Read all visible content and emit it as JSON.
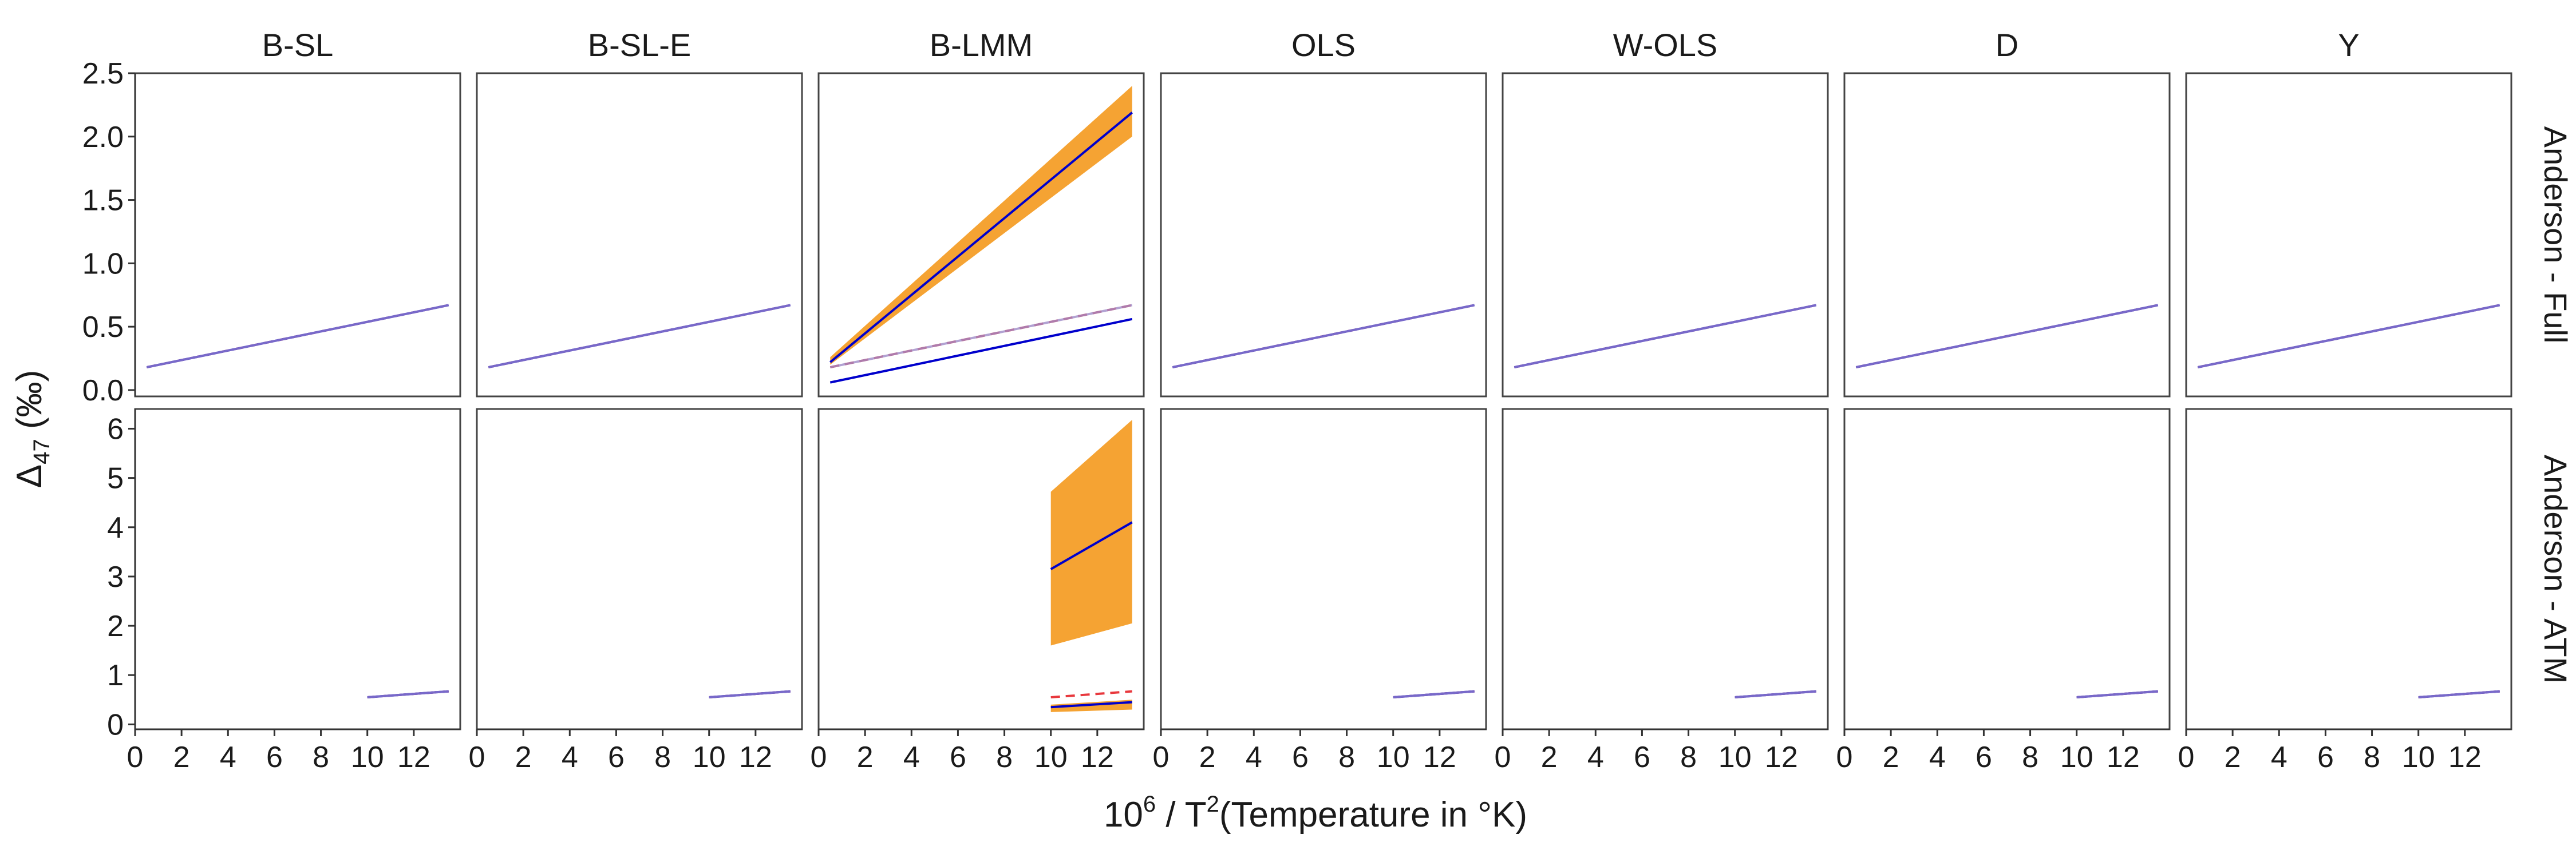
{
  "chart_data": {
    "type": "line",
    "columns": [
      "B-SL",
      "B-SL-E",
      "B-LMM",
      "OLS",
      "W-OLS",
      "D",
      "Y"
    ],
    "rows": [
      "Anderson - Full",
      "Anderson - ATM"
    ],
    "xlabel": {
      "base": "10",
      "sup": "6",
      "mid": " / T",
      "sup2": "2",
      "tail": "(Temperature in °K)"
    },
    "ylabel": {
      "main": "Δ",
      "sub": "47",
      "tail": " (‰)"
    },
    "xlim": [
      0,
      14
    ],
    "x_ticks": [
      0,
      2,
      4,
      6,
      8,
      10,
      12
    ],
    "rows_ylim": [
      [
        -0.05,
        2.5
      ],
      [
        -0.1,
        6.4
      ]
    ],
    "rows_y_ticks": [
      {
        "values": [
          0.0,
          0.5,
          1.0,
          1.5,
          2.0,
          2.5
        ],
        "labels": [
          "0.0",
          "0.5",
          "1.0",
          "1.5",
          "2.0",
          "2.5"
        ]
      },
      {
        "values": [
          0,
          1,
          2,
          3,
          4,
          5,
          6
        ],
        "labels": [
          "0",
          "1",
          "2",
          "3",
          "4",
          "5",
          "6"
        ]
      }
    ],
    "colors": {
      "fit": "#0000cc",
      "band": "#f5a333",
      "reference": "#e8383d",
      "overlay": "#a08cc8"
    },
    "panels": [
      [
        {
          "x": [
            0.5,
            13.5
          ],
          "fit": [
            0.18,
            0.67
          ],
          "reference": [
            0.18,
            0.67
          ]
        },
        {
          "x": [
            0.5,
            13.5
          ],
          "fit": [
            0.18,
            0.67
          ],
          "reference": [
            0.18,
            0.67
          ]
        },
        {
          "x": [
            0.5,
            13.5
          ],
          "fit": [
            0.22,
            2.19
          ],
          "band_lower": [
            0.2,
            2.0
          ],
          "band_upper": [
            0.26,
            2.4
          ],
          "fit2": [
            0.06,
            0.56
          ],
          "reference": [
            0.18,
            0.67
          ],
          "overlay": [
            0.18,
            0.67
          ]
        },
        {
          "x": [
            0.5,
            13.5
          ],
          "fit": [
            0.18,
            0.67
          ],
          "reference": [
            0.18,
            0.67
          ]
        },
        {
          "x": [
            0.5,
            13.5
          ],
          "fit": [
            0.18,
            0.67
          ],
          "reference": [
            0.18,
            0.67
          ]
        },
        {
          "x": [
            0.5,
            13.5
          ],
          "fit": [
            0.18,
            0.67
          ],
          "reference": [
            0.18,
            0.67
          ]
        },
        {
          "x": [
            0.5,
            13.5
          ],
          "fit": [
            0.18,
            0.67
          ],
          "reference": [
            0.18,
            0.67
          ]
        }
      ],
      [
        {
          "x": [
            10,
            13.5
          ],
          "fit": [
            0.55,
            0.67
          ],
          "reference": [
            0.55,
            0.67
          ]
        },
        {
          "x": [
            10,
            13.5
          ],
          "fit": [
            0.55,
            0.67
          ],
          "reference": [
            0.55,
            0.67
          ]
        },
        {
          "x": [
            10,
            13.5
          ],
          "fit": [
            3.15,
            4.1
          ],
          "band_lower": [
            1.6,
            2.05
          ],
          "band_upper": [
            4.72,
            6.18
          ],
          "fit2": [
            0.35,
            0.45
          ],
          "band2_lower": [
            0.25,
            0.3
          ],
          "band2_upper": [
            0.4,
            0.5
          ],
          "reference": [
            0.55,
            0.67
          ]
        },
        {
          "x": [
            10,
            13.5
          ],
          "fit": [
            0.55,
            0.67
          ],
          "reference": [
            0.55,
            0.67
          ]
        },
        {
          "x": [
            10,
            13.5
          ],
          "fit": [
            0.55,
            0.67
          ],
          "reference": [
            0.55,
            0.67
          ]
        },
        {
          "x": [
            10,
            13.5
          ],
          "fit": [
            0.55,
            0.67
          ],
          "reference": [
            0.55,
            0.67
          ]
        },
        {
          "x": [
            10,
            13.5
          ],
          "fit": [
            0.55,
            0.67
          ],
          "reference": [
            0.55,
            0.67
          ]
        }
      ]
    ]
  }
}
